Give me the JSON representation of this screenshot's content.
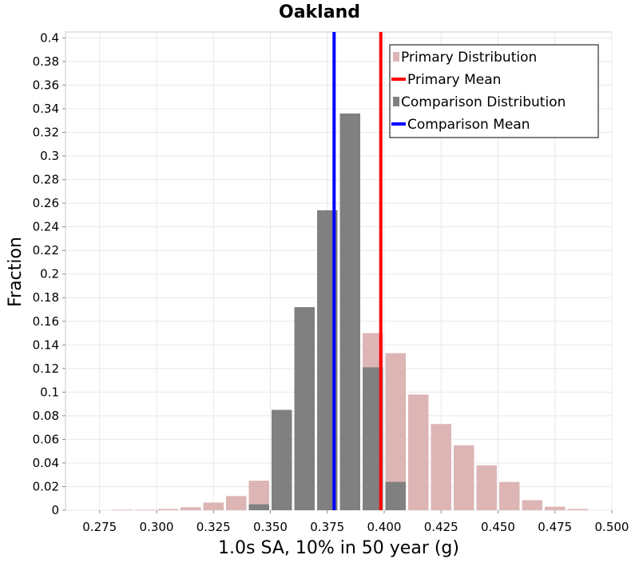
{
  "chart_data": {
    "type": "bar",
    "title": "Oakland",
    "xlabel": "1.0s SA, 10% in 50 year (g)",
    "ylabel": "Fraction",
    "xlim": [
      0.26,
      0.5
    ],
    "ylim": [
      0,
      0.405
    ],
    "x_ticks": [
      "0.275",
      "0.300",
      "0.325",
      "0.350",
      "0.375",
      "0.400",
      "0.425",
      "0.450",
      "0.475",
      "0.500"
    ],
    "y_ticks": [
      "0",
      "0.02",
      "0.04",
      "0.06",
      "0.08",
      "0.1",
      "0.12",
      "0.14",
      "0.16",
      "0.18",
      "0.2",
      "0.22",
      "0.24",
      "0.26",
      "0.28",
      "0.3",
      "0.32",
      "0.34",
      "0.36",
      "0.38",
      "0.4"
    ],
    "grid": true,
    "legend_position": "top-right",
    "bin_width": 0.01,
    "series": [
      {
        "name": "Primary Distribution",
        "kind": "bars",
        "color": "#ddb5b5",
        "x": [
          0.275,
          0.285,
          0.295,
          0.305,
          0.315,
          0.325,
          0.335,
          0.345,
          0.355,
          0.365,
          0.375,
          0.385,
          0.395,
          0.405,
          0.415,
          0.425,
          0.435,
          0.445,
          0.455,
          0.465,
          0.475,
          0.485
        ],
        "values": [
          0.0,
          0.0005,
          0.0005,
          0.001,
          0.0025,
          0.0065,
          0.012,
          0.025,
          0.043,
          0.075,
          0.105,
          0.137,
          0.15,
          0.133,
          0.098,
          0.073,
          0.055,
          0.038,
          0.024,
          0.0085,
          0.003,
          0.001
        ]
      },
      {
        "name": "Comparison Distribution",
        "kind": "bars",
        "color": "#808080",
        "x": [
          0.345,
          0.355,
          0.365,
          0.375,
          0.385,
          0.395,
          0.405
        ],
        "values": [
          0.005,
          0.085,
          0.172,
          0.254,
          0.336,
          0.121,
          0.024
        ]
      },
      {
        "name": "Primary Mean",
        "kind": "vline",
        "color": "#ff0000",
        "x": 0.3985
      },
      {
        "name": "Comparison Mean",
        "kind": "vline",
        "color": "#0000ff",
        "x": 0.378
      }
    ]
  }
}
